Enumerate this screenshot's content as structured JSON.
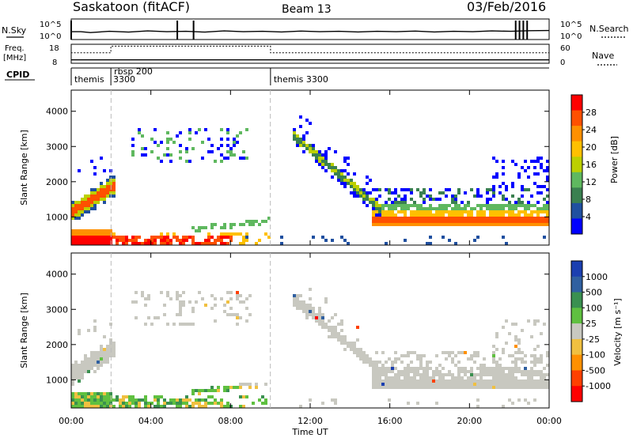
{
  "header": {
    "station": "Saskatoon (fitACF)",
    "beam": "Beam 13",
    "date": "03/Feb/2016"
  },
  "noise_panel": {
    "left_label": "N.Sky",
    "left_ticks": [
      "10^5",
      "10^0"
    ],
    "right_ticks": [
      "10^5",
      "10^0"
    ],
    "right_label": "N.Search",
    "sky_profile": [
      [
        0,
        0.62
      ],
      [
        0.02,
        0.62
      ],
      [
        0.04,
        0.66
      ],
      [
        0.08,
        0.6
      ],
      [
        0.12,
        0.64
      ],
      [
        0.16,
        0.58
      ],
      [
        0.2,
        0.62
      ],
      [
        0.24,
        0.6
      ],
      [
        0.28,
        0.64
      ],
      [
        0.32,
        0.58
      ],
      [
        0.36,
        0.62
      ],
      [
        0.4,
        0.6
      ],
      [
        0.44,
        0.63
      ],
      [
        0.48,
        0.59
      ],
      [
        0.52,
        0.62
      ],
      [
        0.56,
        0.6
      ],
      [
        0.6,
        0.63
      ],
      [
        0.64,
        0.6
      ],
      [
        0.68,
        0.62
      ],
      [
        0.72,
        0.59
      ],
      [
        0.76,
        0.63
      ],
      [
        0.8,
        0.6
      ],
      [
        0.84,
        0.62
      ],
      [
        0.88,
        0.58
      ],
      [
        0.92,
        0.6
      ],
      [
        0.96,
        0.57
      ],
      [
        1.0,
        0.56
      ]
    ],
    "spikes": [
      0.0,
      0.222,
      0.256,
      0.93,
      0.938,
      0.946,
      0.954
    ]
  },
  "freq_panel": {
    "left_label_1": "Freq.",
    "left_label_2": "[MHz]",
    "left_ticks": [
      "18",
      "8"
    ],
    "right_ticks": [
      "60",
      "0"
    ],
    "right_label": "Nave",
    "freq_steps": [
      [
        0,
        0.2
      ],
      [
        0.0,
        0.55
      ],
      [
        0.083,
        0.55
      ],
      [
        0.083,
        0.9
      ],
      [
        0.417,
        0.9
      ],
      [
        0.417,
        0.55
      ],
      [
        1.0,
        0.55
      ]
    ],
    "nave_level": 0.18
  },
  "cpid_panel": {
    "label": "CPID",
    "segments": [
      {
        "x": 0.0,
        "text": "themis"
      },
      {
        "x": 0.083,
        "text": "rbsp 200"
      },
      {
        "x": 0.417,
        "text": "themis 3300"
      }
    ],
    "sub_label": "3300"
  },
  "chart_data": [
    {
      "type": "heatmap",
      "title": "",
      "ylabel": "Slant Range [km]",
      "ylim": [
        200,
        4600
      ],
      "yticks": [
        1000,
        2000,
        3000,
        4000
      ],
      "xticks": [
        "00:00",
        "04:00",
        "08:00",
        "12:00",
        "16:00",
        "20:00",
        "00:00"
      ],
      "colorbar": {
        "label": "Power [dB]",
        "ticks": [
          "28",
          "24",
          "20",
          "16",
          "12",
          "8",
          "4"
        ],
        "colors": [
          "#ff0000",
          "#ff5000",
          "#ff9000",
          "#ffc000",
          "#bcd000",
          "#5fb85f",
          "#3a8050",
          "#2050a0",
          "#0000ff"
        ]
      }
    },
    {
      "type": "heatmap",
      "title": "",
      "xlabel": "Time UT",
      "ylabel": "Slant Range [km]",
      "ylim": [
        200,
        4600
      ],
      "yticks": [
        1000,
        2000,
        3000,
        4000
      ],
      "xticks": [
        "00:00",
        "04:00",
        "08:00",
        "12:00",
        "16:00",
        "20:00",
        "00:00"
      ],
      "colorbar": {
        "label": "Velocity [m s⁻¹]",
        "ticks": [
          "1000",
          "500",
          "100",
          "25",
          "-25",
          "-100",
          "-500",
          "-1000"
        ],
        "colors": [
          "#1b3fb0",
          "#3060a0",
          "#3a9050",
          "#5fc040",
          "#c8c8c0",
          "#f0c040",
          "#ff9000",
          "#ff4000",
          "#ff0000"
        ]
      }
    }
  ]
}
